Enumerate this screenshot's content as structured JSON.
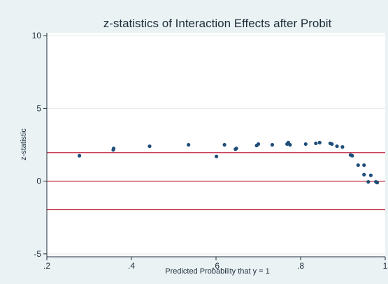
{
  "chart_data": {
    "type": "scatter",
    "title": "z-statistics of Interaction Effects after Probit",
    "xlabel": "Predicted Probability that y = 1",
    "ylabel": "z-statistic",
    "xlim": [
      0.2,
      1.0
    ],
    "ylim": [
      -5.2,
      10.2
    ],
    "xticks": [
      ".2",
      ".4",
      ".6",
      ".8",
      "1"
    ],
    "xtick_values": [
      0.2,
      0.4,
      0.6,
      0.8,
      1.0
    ],
    "yticks": [
      "-5",
      "0",
      "5",
      "10"
    ],
    "ytick_values": [
      -5,
      0,
      5,
      10
    ],
    "grid": true,
    "reference_lines": [
      1.96,
      0,
      -1.96
    ],
    "colors": {
      "background": "#eaf2f3",
      "plot_area": "#ffffff",
      "markers": "#1f4e79",
      "reference_lines": "#c0243f",
      "gridlines": "#e6e6e6"
    },
    "points": [
      {
        "x": 0.277,
        "y": 1.75
      },
      {
        "x": 0.357,
        "y": 2.15
      },
      {
        "x": 0.358,
        "y": 2.25
      },
      {
        "x": 0.443,
        "y": 2.4
      },
      {
        "x": 0.535,
        "y": 2.5
      },
      {
        "x": 0.601,
        "y": 1.7
      },
      {
        "x": 0.62,
        "y": 2.5
      },
      {
        "x": 0.646,
        "y": 2.2
      },
      {
        "x": 0.648,
        "y": 2.25
      },
      {
        "x": 0.696,
        "y": 2.45
      },
      {
        "x": 0.7,
        "y": 2.55
      },
      {
        "x": 0.733,
        "y": 2.5
      },
      {
        "x": 0.768,
        "y": 2.55
      },
      {
        "x": 0.771,
        "y": 2.65
      },
      {
        "x": 0.775,
        "y": 2.5
      },
      {
        "x": 0.812,
        "y": 2.55
      },
      {
        "x": 0.836,
        "y": 2.6
      },
      {
        "x": 0.845,
        "y": 2.65
      },
      {
        "x": 0.87,
        "y": 2.6
      },
      {
        "x": 0.874,
        "y": 2.55
      },
      {
        "x": 0.886,
        "y": 2.4
      },
      {
        "x": 0.899,
        "y": 2.35
      },
      {
        "x": 0.918,
        "y": 1.8
      },
      {
        "x": 0.922,
        "y": 1.75
      },
      {
        "x": 0.936,
        "y": 1.1
      },
      {
        "x": 0.95,
        "y": 1.1
      },
      {
        "x": 0.95,
        "y": 0.45
      },
      {
        "x": 0.96,
        "y": -0.05
      },
      {
        "x": 0.966,
        "y": 0.4
      },
      {
        "x": 0.978,
        "y": -0.05
      },
      {
        "x": 0.981,
        "y": -0.1
      }
    ]
  }
}
